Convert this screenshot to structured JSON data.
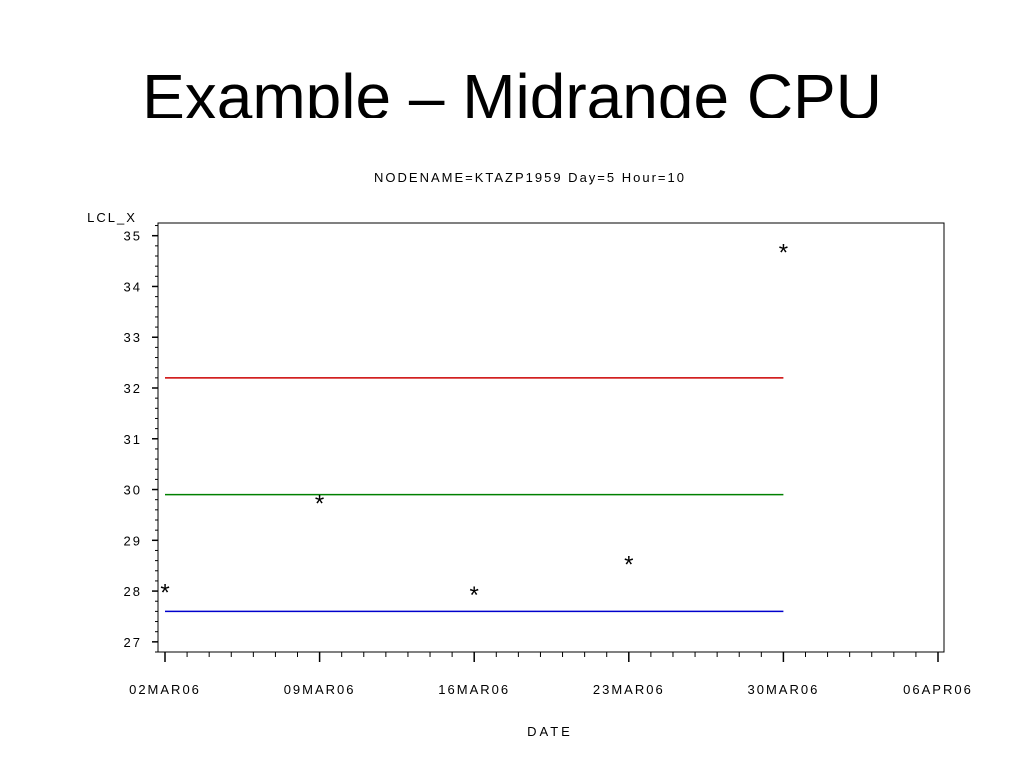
{
  "slide": {
    "title": "Example – Midrange CPU"
  },
  "chart_data": {
    "type": "scatter",
    "title": "NODENAME=KTAZP1959   Day=5   Hour=10",
    "ylabel": "LCL_X",
    "xlabel": "DATE",
    "x_is_date": true,
    "xlim": [
      "2006-03-02",
      "2006-04-06"
    ],
    "x_ticks": [
      "2006-03-02",
      "2006-03-09",
      "2006-03-16",
      "2006-03-23",
      "2006-03-30",
      "2006-04-06"
    ],
    "x_tick_labels": [
      "02MAR06",
      "09MAR06",
      "16MAR06",
      "23MAR06",
      "30MAR06",
      "06APR06"
    ],
    "ylim": [
      26.8,
      35.25
    ],
    "y_ticks": [
      27,
      28,
      29,
      30,
      31,
      32,
      33,
      34,
      35
    ],
    "y_tick_labels": [
      "27",
      "28",
      "29",
      "30",
      "31",
      "32",
      "33",
      "34",
      "35"
    ],
    "marker": "*",
    "points": [
      {
        "x": "2006-03-02",
        "y": 28.05
      },
      {
        "x": "2006-03-09",
        "y": 29.8
      },
      {
        "x": "2006-03-16",
        "y": 28.0
      },
      {
        "x": "2006-03-23",
        "y": 28.6
      },
      {
        "x": "2006-03-30",
        "y": 34.75
      }
    ],
    "reference_lines": [
      {
        "y": 32.2,
        "x_start": "2006-03-02",
        "x_end": "2006-03-30",
        "color": "#cc0000"
      },
      {
        "y": 29.9,
        "x_start": "2006-03-02",
        "x_end": "2006-03-30",
        "color": "#008000"
      },
      {
        "y": 27.6,
        "x_start": "2006-03-02",
        "x_end": "2006-03-30",
        "color": "#0000cc"
      }
    ],
    "grid": false
  }
}
